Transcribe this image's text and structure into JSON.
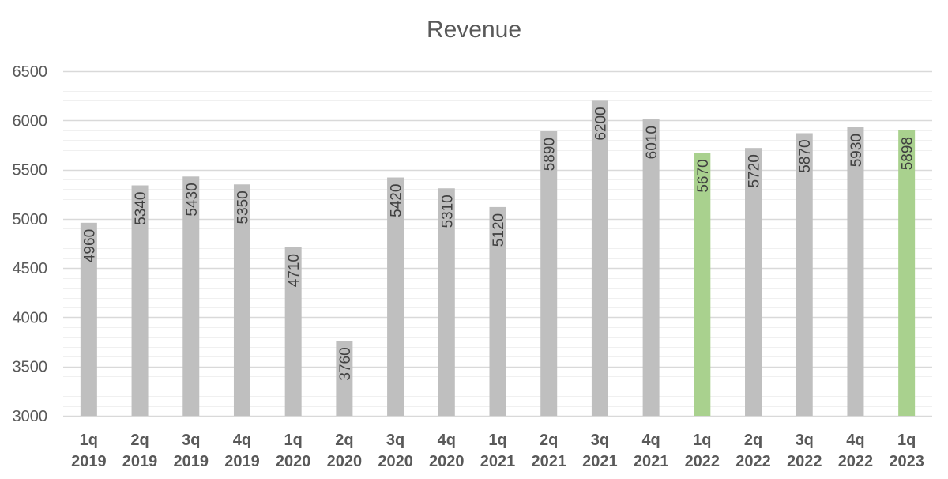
{
  "chart_data": {
    "type": "bar",
    "title": "Revenue",
    "xlabel": "",
    "ylabel": "",
    "ylim": [
      3000,
      6500
    ],
    "y_ticks": [
      3000,
      3500,
      4000,
      4500,
      5000,
      5500,
      6000,
      6500
    ],
    "minor_grid_step": 100,
    "grid": true,
    "legend": "none",
    "categories": [
      {
        "quarter": "1q",
        "year": "2019"
      },
      {
        "quarter": "2q",
        "year": "2019"
      },
      {
        "quarter": "3q",
        "year": "2019"
      },
      {
        "quarter": "4q",
        "year": "2019"
      },
      {
        "quarter": "1q",
        "year": "2020"
      },
      {
        "quarter": "2q",
        "year": "2020"
      },
      {
        "quarter": "3q",
        "year": "2020"
      },
      {
        "quarter": "4q",
        "year": "2020"
      },
      {
        "quarter": "1q",
        "year": "2021"
      },
      {
        "quarter": "2q",
        "year": "2021"
      },
      {
        "quarter": "3q",
        "year": "2021"
      },
      {
        "quarter": "4q",
        "year": "2021"
      },
      {
        "quarter": "1q",
        "year": "2022"
      },
      {
        "quarter": "2q",
        "year": "2022"
      },
      {
        "quarter": "3q",
        "year": "2022"
      },
      {
        "quarter": "4q",
        "year": "2022"
      },
      {
        "quarter": "1q",
        "year": "2023"
      }
    ],
    "values": [
      4960,
      5340,
      5430,
      5350,
      4710,
      3760,
      5420,
      5310,
      5120,
      5890,
      6200,
      6010,
      5670,
      5720,
      5870,
      5930,
      5898
    ],
    "highlight_indices": [
      12,
      16
    ],
    "colors": {
      "bar": "#bfbfbf",
      "highlight": "#a9d18e",
      "major_grid": "#d9d9d9",
      "minor_grid": "#f0f0f0",
      "text": "#595959",
      "label": "#404040"
    }
  }
}
